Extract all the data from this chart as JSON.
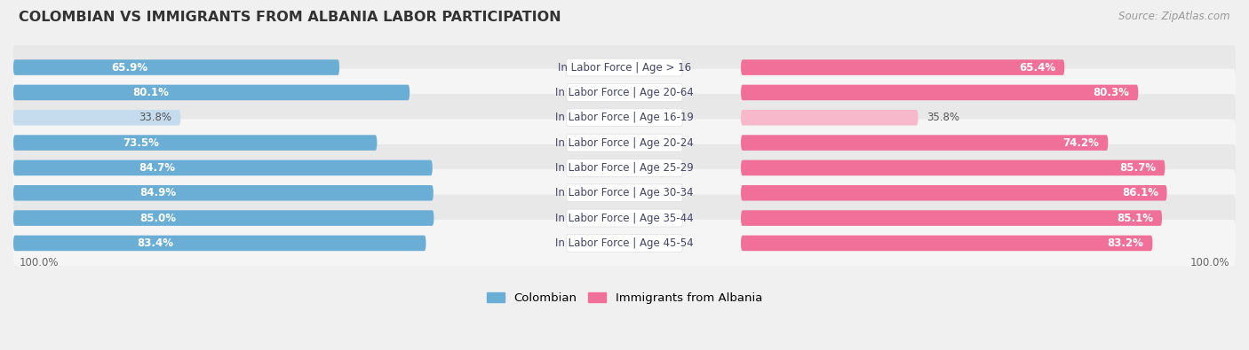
{
  "title": "COLOMBIAN VS IMMIGRANTS FROM ALBANIA LABOR PARTICIPATION",
  "source": "Source: ZipAtlas.com",
  "categories": [
    "In Labor Force | Age > 16",
    "In Labor Force | Age 20-64",
    "In Labor Force | Age 16-19",
    "In Labor Force | Age 20-24",
    "In Labor Force | Age 25-29",
    "In Labor Force | Age 30-34",
    "In Labor Force | Age 35-44",
    "In Labor Force | Age 45-54"
  ],
  "colombian_values": [
    65.9,
    80.1,
    33.8,
    73.5,
    84.7,
    84.9,
    85.0,
    83.4
  ],
  "albania_values": [
    65.4,
    80.3,
    35.8,
    74.2,
    85.7,
    86.1,
    85.1,
    83.2
  ],
  "colombian_color": "#6aaed6",
  "colombian_color_light": "#c5dbee",
  "albania_color": "#f0709a",
  "albania_color_light": "#f7b8cc",
  "bar_height": 0.62,
  "max_value": 100.0,
  "background_color": "#f0f0f0",
  "row_bg_odd": "#e8e8e8",
  "row_bg_even": "#f5f5f5",
  "pill_bg": "#ffffff",
  "title_fontsize": 11.5,
  "label_fontsize": 8.5,
  "value_fontsize": 8.5,
  "legend_fontsize": 9.5,
  "source_fontsize": 8.5,
  "title_color": "#333333",
  "label_color": "#444466",
  "value_color_white": "#ffffff",
  "value_color_dark": "#555555"
}
